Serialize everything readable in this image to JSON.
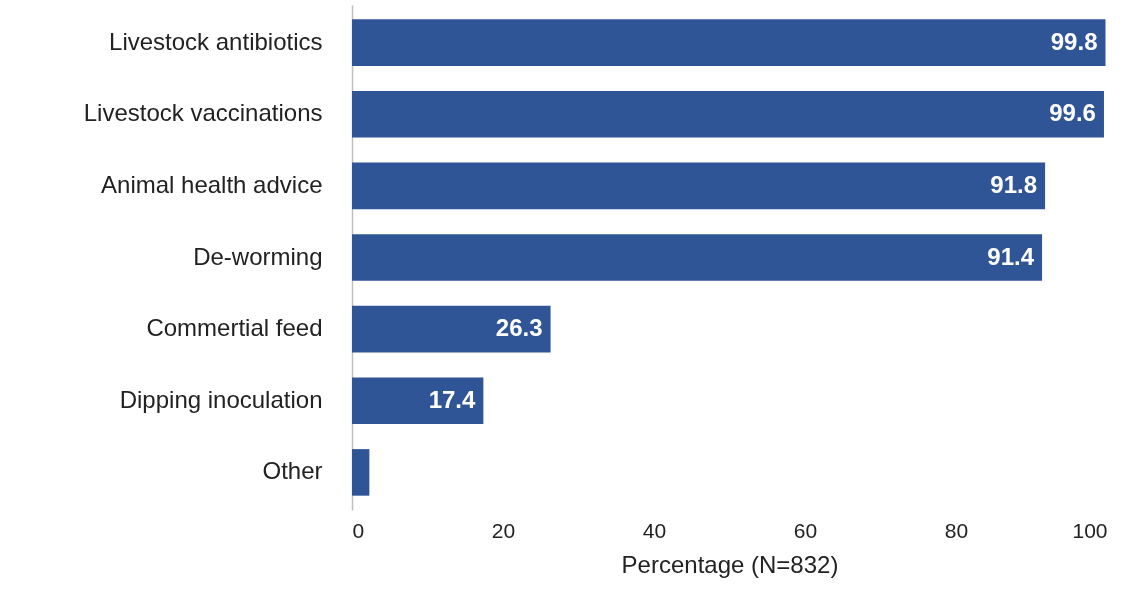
{
  "chart_data": {
    "type": "bar",
    "orientation": "horizontal",
    "xlabel": "Percentage (N=832)",
    "categories": [
      "Livestock antibiotics",
      "Livestock vaccinations",
      "Animal health advice",
      "De-worming",
      "Commertial feed",
      "Dipping inoculation",
      "Other"
    ],
    "values": [
      99.8,
      99.6,
      91.8,
      91.4,
      26.3,
      17.4,
      2.3
    ],
    "value_labels": [
      "99.8",
      "99.6",
      "91.8",
      "91.4",
      "26.3",
      "17.4",
      null
    ],
    "color": "#2f5597",
    "xlim": [
      0,
      100
    ],
    "xticks": [
      0,
      20,
      40,
      60,
      80,
      100
    ],
    "grid": false
  }
}
